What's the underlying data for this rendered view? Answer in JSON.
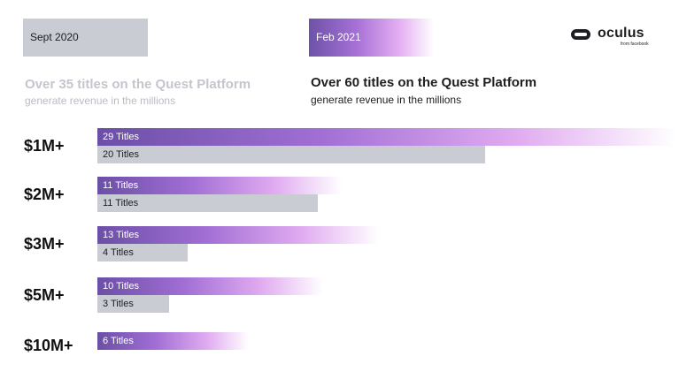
{
  "header": {
    "sept_tag": "Sept 2020",
    "feb_tag": "Feb 2021",
    "logo_word": "oculus",
    "logo_sub": "from facebook"
  },
  "sept_headline": "Over 35 titles on the Quest Platform",
  "sept_subline": "generate revenue in the millions",
  "feb_headline": "Over 60 titles on the Quest Platform",
  "feb_subline": "generate revenue in the millions",
  "colors": {
    "feb_bar": "#a06ed4",
    "sept_bar": "#c9ccd3"
  },
  "chart_data": {
    "type": "bar",
    "orientation": "horizontal",
    "categories": [
      "$1M+",
      "$2M+",
      "$3M+",
      "$5M+",
      "$10M+"
    ],
    "series": [
      {
        "name": "Feb 2021",
        "values": [
          29,
          11,
          13,
          10,
          6
        ],
        "labels": [
          "29 Titles",
          "11 Titles",
          "13 Titles",
          "10 Titles",
          "6 Titles"
        ]
      },
      {
        "name": "Sept 2020",
        "values": [
          20,
          11,
          4,
          3,
          null
        ],
        "labels": [
          "20 Titles",
          "11 Titles",
          "4 Titles",
          "3 Titles",
          ""
        ]
      }
    ],
    "grid": false
  }
}
